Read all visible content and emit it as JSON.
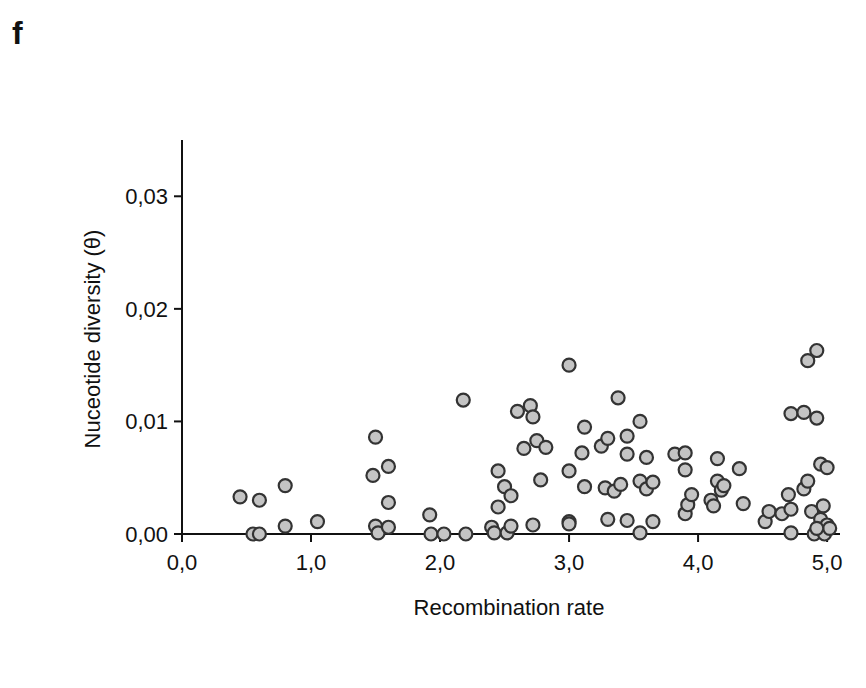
{
  "chart_data": {
    "type": "scatter",
    "title": "f",
    "x_label": "Recombination rate",
    "y_label": "Nuceotide diversity (θ)",
    "marker": "circle",
    "color": "#333333",
    "grid": false,
    "xlim": [
      0,
      5.1
    ],
    "ylim": [
      0,
      0.035
    ],
    "xticks": [
      {
        "value": 0,
        "label": "0,0"
      },
      {
        "value": 1,
        "label": "1,0"
      },
      {
        "value": 2,
        "label": "2,0"
      },
      {
        "value": 3,
        "label": "3,0"
      },
      {
        "value": 4,
        "label": "4,0"
      },
      {
        "value": 5,
        "label": "5,0"
      }
    ],
    "yticks": [
      {
        "value": 0,
        "label": "0,00"
      },
      {
        "value": 0.01,
        "label": "0,01"
      },
      {
        "value": 0.02,
        "label": "0,02"
      },
      {
        "value": 0.03,
        "label": "0,03"
      }
    ],
    "x": [
      0.45,
      0.55,
      0.6,
      0.6,
      0.8,
      0.8,
      1.05,
      1.48,
      1.5,
      1.5,
      1.52,
      1.6,
      1.6,
      1.6,
      1.92,
      1.93,
      2.03,
      2.18,
      2.2,
      2.4,
      2.42,
      2.45,
      2.45,
      2.5,
      2.52,
      2.55,
      2.55,
      2.6,
      2.65,
      2.7,
      2.72,
      2.72,
      2.75,
      2.78,
      2.82,
      3.0,
      3.0,
      3.0,
      3.0,
      3.1,
      3.12,
      3.12,
      3.25,
      3.28,
      3.3,
      3.3,
      3.35,
      3.38,
      3.4,
      3.45,
      3.45,
      3.45,
      3.55,
      3.55,
      3.55,
      3.6,
      3.6,
      3.65,
      3.65,
      3.82,
      3.9,
      3.9,
      3.9,
      3.92,
      3.95,
      4.1,
      4.12,
      4.15,
      4.15,
      4.18,
      4.2,
      4.32,
      4.35,
      4.52,
      4.55,
      4.65,
      4.7,
      4.72,
      4.72,
      4.72,
      4.82,
      4.82,
      4.85,
      4.85,
      4.88,
      4.9,
      4.92,
      4.92,
      4.95,
      4.95,
      4.97,
      4.98,
      5.0,
      5.0,
      5.02,
      4.92
    ],
    "values": [
      0.0033,
      0.0,
      0.003,
      0.0,
      0.0043,
      0.0007,
      0.0011,
      0.0052,
      0.0086,
      0.0007,
      0.0001,
      0.006,
      0.0028,
      0.0006,
      0.0017,
      0.0,
      0.0,
      0.0119,
      0.0,
      0.0006,
      0.0001,
      0.0056,
      0.0024,
      0.0042,
      0.0001,
      0.0034,
      0.0007,
      0.0109,
      0.0076,
      0.0114,
      0.0104,
      0.0008,
      0.0083,
      0.0048,
      0.0077,
      0.015,
      0.0056,
      0.0011,
      0.0009,
      0.0072,
      0.0095,
      0.0042,
      0.0078,
      0.0041,
      0.0085,
      0.0013,
      0.0038,
      0.0121,
      0.0044,
      0.0087,
      0.0071,
      0.0012,
      0.01,
      0.0047,
      0.0001,
      0.0068,
      0.004,
      0.0011,
      0.0046,
      0.0071,
      0.0072,
      0.0057,
      0.0018,
      0.0026,
      0.0035,
      0.003,
      0.0025,
      0.0067,
      0.0047,
      0.0039,
      0.0043,
      0.0058,
      0.0027,
      0.0011,
      0.002,
      0.0018,
      0.0035,
      0.0107,
      0.0022,
      0.0001,
      0.004,
      0.0108,
      0.0154,
      0.0047,
      0.002,
      0.0,
      0.0103,
      0.0163,
      0.0062,
      0.0013,
      0.0025,
      0.0,
      0.0059,
      0.0008,
      0.0005,
      0.0005
    ]
  }
}
